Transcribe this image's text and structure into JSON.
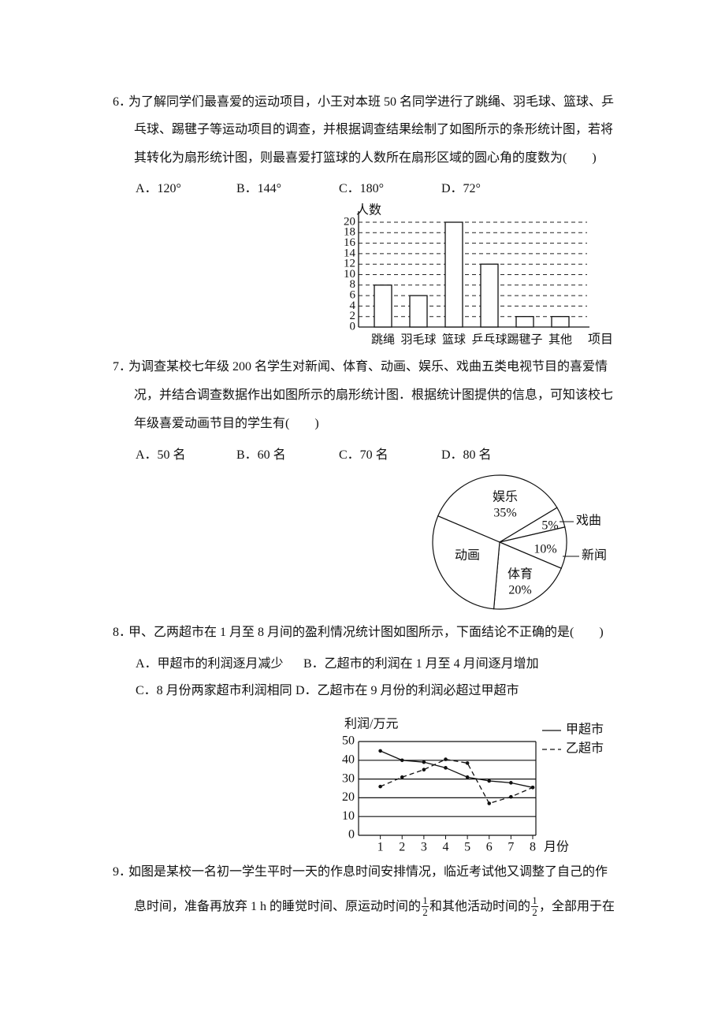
{
  "questions": [
    {
      "number": "6．",
      "lines": [
        "为了解同学们最喜爱的运动项目，小王对本班 50 名同学进行了跳绳、羽毛球、篮球、乒",
        "乓球、踢毽子等运动项目的调查，并根据调查结果绘制了如图所示的条形统计图，若将",
        "其转化为扇形统计图，则最喜爱打篮球的人数所在扇形区域的圆心角的度数为(　　)"
      ],
      "options": [
        "A．120°",
        "B．144°",
        "C．180°",
        "D．72°"
      ],
      "chart": {
        "type": "bar",
        "y_label": "人数",
        "x_label": "项目",
        "categories": [
          "跳绳",
          "羽毛球",
          "篮球",
          "乒乓球",
          "踢毽子",
          "其他"
        ],
        "values": [
          8,
          6,
          20,
          12,
          2,
          2
        ],
        "color": "#ffffff",
        "ylim": [
          0,
          20
        ],
        "yticks": [
          0,
          2,
          4,
          6,
          8,
          10,
          12,
          14,
          16,
          18,
          20
        ],
        "grid": "dashed"
      }
    },
    {
      "number": "7．",
      "lines": [
        "为调查某校七年级 200 名学生对新闻、体育、动画、娱乐、戏曲五类电视节目的喜爱情",
        "况，并结合调查数据作出如图所示的扇形统计图．根据统计图提供的信息，可知该校七",
        "年级喜爱动画节目的学生有(　　)"
      ],
      "options": [
        "A．50 名",
        "B．60 名",
        "C．70 名",
        "D．80 名"
      ],
      "chart": {
        "type": "pie",
        "categories": [
          "娱乐",
          "戏曲",
          "新闻",
          "体育",
          "动画"
        ],
        "values": [
          35,
          5,
          10,
          20,
          30
        ],
        "value_labels": [
          "35%",
          "5%",
          "10%",
          "20%",
          null
        ],
        "color": "#ffffff"
      }
    },
    {
      "number": "8．",
      "lines": [
        "甲、乙两超市在 1 月至 8 月间的盈利情况统计图如图所示，下面结论不正确的是(　　)"
      ],
      "options": [
        "A．甲超市的利润逐月减少",
        "B．乙超市的利润在 1 月至 4 月间逐月增加",
        "C．8 月份两家超市利润相同",
        "D．乙超市在 9 月份的利润必超过甲超市"
      ],
      "chart": {
        "type": "line",
        "y_label": "利润/万元",
        "x_label": "月份",
        "x": [
          1,
          2,
          3,
          4,
          5,
          6,
          7,
          8
        ],
        "xlim": [
          0,
          8
        ],
        "xticks": [
          1,
          2,
          3,
          4,
          5,
          6,
          7,
          8
        ],
        "ylim": [
          0,
          50
        ],
        "yticks": [
          0,
          10,
          20,
          30,
          40,
          50
        ],
        "grid": true,
        "legend": "right",
        "series": [
          {
            "name": "甲超市",
            "color": "#111111",
            "style": "solid",
            "values": [
              45,
              40,
              39,
              36,
              31,
              29,
              28,
              25.5
            ]
          },
          {
            "name": "乙超市",
            "color": "#111111",
            "style": "dashed",
            "values": [
              26,
              31,
              35,
              40.5,
              38.5,
              17,
              20.5,
              25.5
            ]
          }
        ]
      }
    },
    {
      "number": "9．",
      "lines": [
        "如图是某校一名初一学生平时一天的作息时间安排情况，临近考试他又调整了自己的作"
      ],
      "parts": [
        "息时间，准备再放弃 1 h 的睡觉时间、原运动时间的",
        "和其他活动时间的",
        "，全部用于在"
      ],
      "fractions": [
        {
          "numerator": "1",
          "denominator": "2"
        },
        {
          "numerator": "1",
          "denominator": "2"
        }
      ]
    }
  ]
}
